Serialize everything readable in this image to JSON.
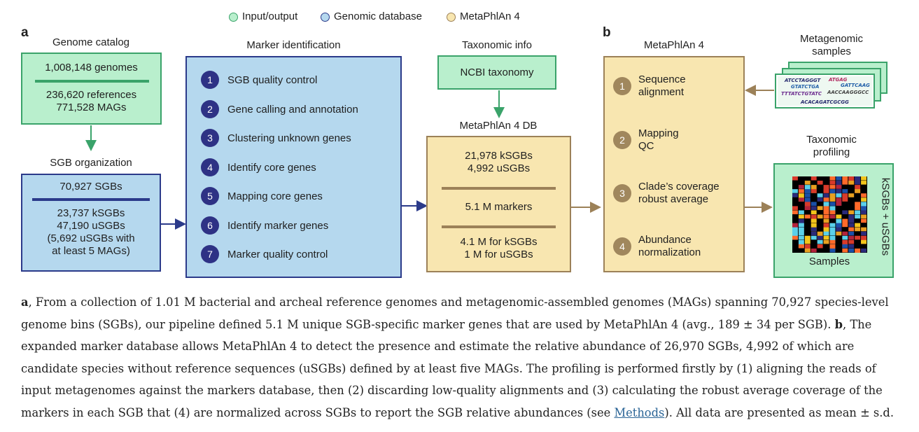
{
  "legend": [
    {
      "label": "Input/output",
      "color": "#b9efcd",
      "border": "#3aa36a"
    },
    {
      "label": "Genomic database",
      "color": "#b5d8ee",
      "border": "#2b3a8a"
    },
    {
      "label": "MetaPhlAn 4",
      "color": "#f8e6b0",
      "border": "#9c8158"
    }
  ],
  "panel_a": {
    "letter": "a",
    "genome_catalog": {
      "header": "Genome catalog",
      "line1": "1,008,148 genomes",
      "line2": "236,620 references",
      "line3": "771,528 MAGs"
    },
    "sgb_org": {
      "header": "SGB organization",
      "line1": "70,927 SGBs",
      "line2": "23,737 kSGBs",
      "line3": "47,190 uSGBs",
      "line4": "(5,692 uSGBs with",
      "line5": "at least 5 MAGs)"
    },
    "marker_id": {
      "header": "Marker identification",
      "steps": [
        {
          "num": "1",
          "label": "SGB quality control"
        },
        {
          "num": "2",
          "label": "Gene calling and annotation"
        },
        {
          "num": "3",
          "label": "Clustering unknown genes"
        },
        {
          "num": "4",
          "label": "Identify core genes"
        },
        {
          "num": "5",
          "label": "Mapping core genes"
        },
        {
          "num": "6",
          "label": "Identify marker genes"
        },
        {
          "num": "7",
          "label": "Marker quality control"
        }
      ]
    },
    "taxonomic_info": {
      "header": "Taxonomic info",
      "label": "NCBI taxonomy"
    },
    "db": {
      "header": "MetaPhlAn 4 DB",
      "line1": "21,978 kSGBs",
      "line2": "4,992 uSGBs",
      "line3": "5.1 M markers",
      "line4": "4.1 M for kSGBs",
      "line5": "1 M for uSGBs"
    }
  },
  "panel_b": {
    "letter": "b",
    "header": "MetaPhlAn 4",
    "steps": [
      {
        "num": "1",
        "line1": "Sequence",
        "line2": "alignment"
      },
      {
        "num": "2",
        "line1": "Mapping",
        "line2": "QC"
      },
      {
        "num": "3",
        "line1": "Clade’s coverage",
        "line2": "robust average"
      },
      {
        "num": "4",
        "line1": "Abundance",
        "line2": "normalization"
      }
    ],
    "metagenomic": {
      "header1": "Metagenomic",
      "header2": "samples",
      "reads": [
        "ATCCTAGGGT",
        "ATGAG",
        "GTATCTGA",
        "GATTCAAG",
        "TTTATCTGTATC",
        "AACCAAGGGCC",
        "ACACAGATCGCGG"
      ]
    },
    "profiling": {
      "header1": "Taxonomic",
      "header2": "profiling",
      "samples_label": "Samples",
      "side_label": "kSGBs + uSGBs"
    }
  },
  "caption": {
    "a_letter": "a",
    "part1": ", From a collection of 1.01 M bacterial and archeal reference genomes and metagenomic-assembled genomes (MAGs) spanning 70,927 species-level genome bins (SGBs), our pipeline defined 5.1 M unique SGB-specific marker genes that are used by MetaPhlAn 4 (avg., 189 ± 34 per SGB). ",
    "b_letter": "b",
    "part2": ", The expanded marker database allows MetaPhlAn 4 to detect the presence and estimate the relative abundance of 26,970 SGBs, 4,992 of which are candidate species without reference sequences (uSGBs) defined by at least five MAGs. The profiling is performed firstly by (1) aligning the reads of input metagenomes against the markers database, then (2) discarding low-quality alignments and (3) calculating the robust average coverage of the markers in each SGB that (4) are normalized across SGBs to report the SGB relative abundances (see ",
    "link": "Methods",
    "part3": "). All data are presented as mean ± s.d."
  }
}
